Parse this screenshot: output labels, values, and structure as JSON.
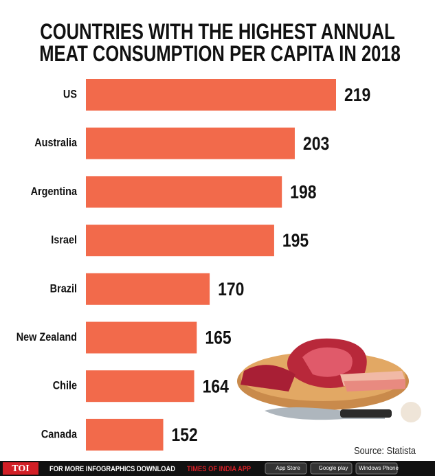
{
  "chart_data": {
    "type": "bar",
    "orientation": "horizontal",
    "title": "COUNTRIES WITH THE HIGHEST ANNUAL MEAT CONSUMPTION PER CAPITA IN 2018",
    "categories": [
      "US",
      "Australia",
      "Argentina",
      "Israel",
      "Brazil",
      "New Zealand",
      "Chile",
      "Canada"
    ],
    "values": [
      219,
      203,
      198,
      195,
      170,
      165,
      164,
      152
    ],
    "color": "#f26a4b",
    "xlim": [
      138,
      219
    ],
    "source": "Source: Statista"
  },
  "footer": {
    "logo": "TOI",
    "text": "FOR MORE  INFOGRAPHICS DOWNLOAD",
    "app": "TIMES OF INDIA APP",
    "badges": [
      "App Store",
      "Google play",
      "Windows Phone"
    ]
  }
}
